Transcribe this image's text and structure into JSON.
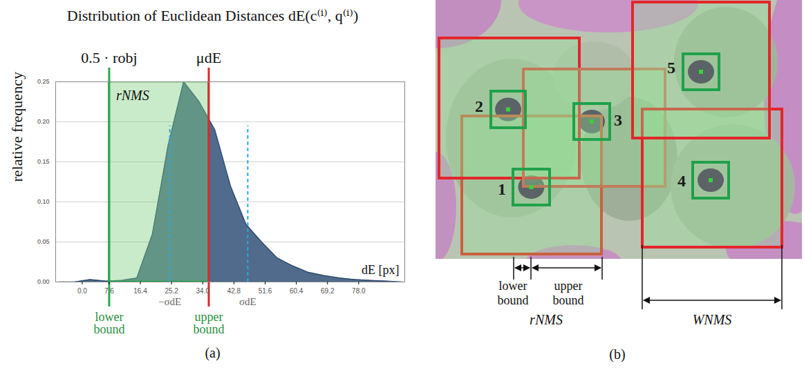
{
  "chart_data": {
    "type": "area",
    "title": "Distribution of Euclidean Distances dE(c⁽ⁱ⁾, q⁽ⁱ⁾)",
    "x_label": "dE [px]",
    "y_label": "relative frequency",
    "x": [
      -6.6,
      -2.2,
      2.2,
      6.6,
      11.0,
      15.4,
      19.8,
      24.2,
      28.6,
      33.0,
      37.4,
      41.8,
      46.2,
      50.6,
      55.0,
      59.4,
      63.8,
      68.2,
      72.6,
      77.0,
      81.4,
      85.8,
      90.2
    ],
    "values": [
      0.0,
      0.0,
      0.003,
      0.001,
      0.002,
      0.005,
      0.06,
      0.17,
      0.25,
      0.225,
      0.19,
      0.12,
      0.072,
      0.05,
      0.03,
      0.02,
      0.012,
      0.008,
      0.005,
      0.003,
      0.002,
      0.001,
      0.0
    ],
    "color": "#506b8c",
    "xlim": [
      -7.5,
      91
    ],
    "xticks": [
      {
        "value": 0,
        "label": "0.0"
      },
      7.6,
      16.4,
      25.2,
      {
        "value": 34,
        "label": "34.0"
      },
      42.8,
      51.6,
      60.4,
      69.2,
      {
        "value": 78,
        "label": "78.0"
      }
    ],
    "ylim": [
      0,
      0.25
    ],
    "yticks": [
      {
        "value": 0,
        "label": "0.00"
      },
      0.05,
      {
        "value": 0.1,
        "label": "0.10"
      },
      0.15,
      {
        "value": 0.2,
        "label": "0.20"
      },
      0.25
    ],
    "grid": true,
    "annotations": {
      "lower_bound": {
        "x": 7.6,
        "label": "0.5 · robj",
        "caption": "lower bound"
      },
      "upper_bound": {
        "x": 35.7,
        "label": "μdE",
        "caption": "upper bound"
      },
      "sigma": {
        "x": [
          24.7,
          46.7
        ],
        "labels": [
          "−σdE",
          "σdE"
        ],
        "top": 0.195
      },
      "region_label": "rNMS"
    },
    "panel_label": "(a)"
  },
  "panel_b": {
    "panel_label": "(b)",
    "detections": [
      "1",
      "2",
      "3",
      "4",
      "5"
    ],
    "lower_bound": "lower bound",
    "upper_bound": "upper bound",
    "r_label": "rNMS",
    "w_label": "WNMS"
  }
}
